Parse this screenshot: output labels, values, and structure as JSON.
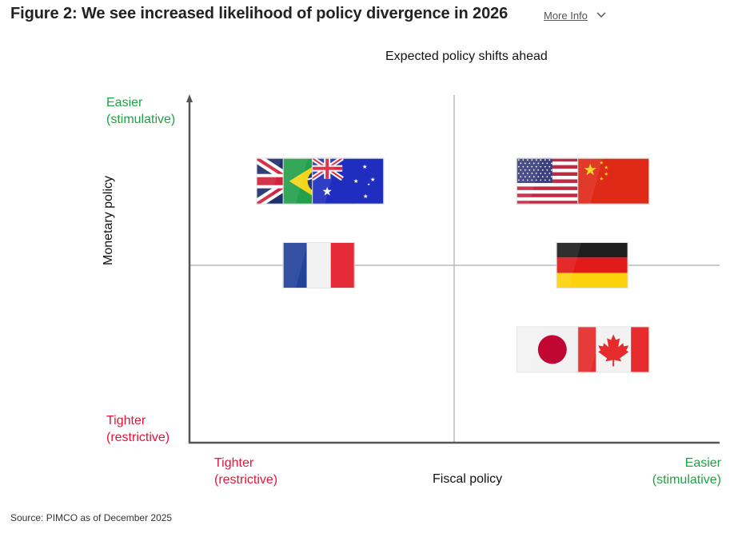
{
  "header": {
    "title": "Figure 2: We see increased likelihood of policy divergence in 2026",
    "more_info_label": "More Info",
    "more_info_icon": "chevron-down-icon"
  },
  "chart_data": {
    "type": "scatter",
    "title": "Expected policy shifts ahead",
    "xlabel": "Fiscal policy",
    "ylabel": "Monetary policy",
    "x_axis": {
      "low_label": [
        "Tighter",
        "(restrictive)"
      ],
      "high_label": [
        "Easier",
        "(stimulative)"
      ],
      "low_color": "#e2153a",
      "high_color": "#22a046"
    },
    "y_axis": {
      "low_label": [
        "Tighter",
        "(restrictive)"
      ],
      "high_label": [
        "Easier",
        "(stimulative)"
      ],
      "low_color": "#e2153a",
      "high_color": "#22a046"
    },
    "xlim": [
      -1,
      1
    ],
    "ylim": [
      -1,
      1
    ],
    "quadrant_dividers": {
      "x": 0,
      "y": 0
    },
    "points": [
      {
        "country": "United Kingdom",
        "flag": "uk",
        "x": -0.61,
        "y": 0.49
      },
      {
        "country": "Brazil",
        "flag": "brazil",
        "x": -0.51,
        "y": 0.49
      },
      {
        "country": "Australia",
        "flag": "australia",
        "x": -0.4,
        "y": 0.49
      },
      {
        "country": "France",
        "flag": "france",
        "x": -0.51,
        "y": 0.0
      },
      {
        "country": "United States",
        "flag": "usa",
        "x": 0.37,
        "y": 0.49
      },
      {
        "country": "China",
        "flag": "china",
        "x": 0.6,
        "y": 0.49
      },
      {
        "country": "Germany",
        "flag": "germany",
        "x": 0.52,
        "y": 0.0
      },
      {
        "country": "Japan",
        "flag": "japan",
        "x": 0.37,
        "y": -0.49
      },
      {
        "country": "Canada",
        "flag": "canada",
        "x": 0.6,
        "y": -0.49
      }
    ]
  },
  "footer": {
    "source": "Source: PIMCO as of December 2025"
  }
}
